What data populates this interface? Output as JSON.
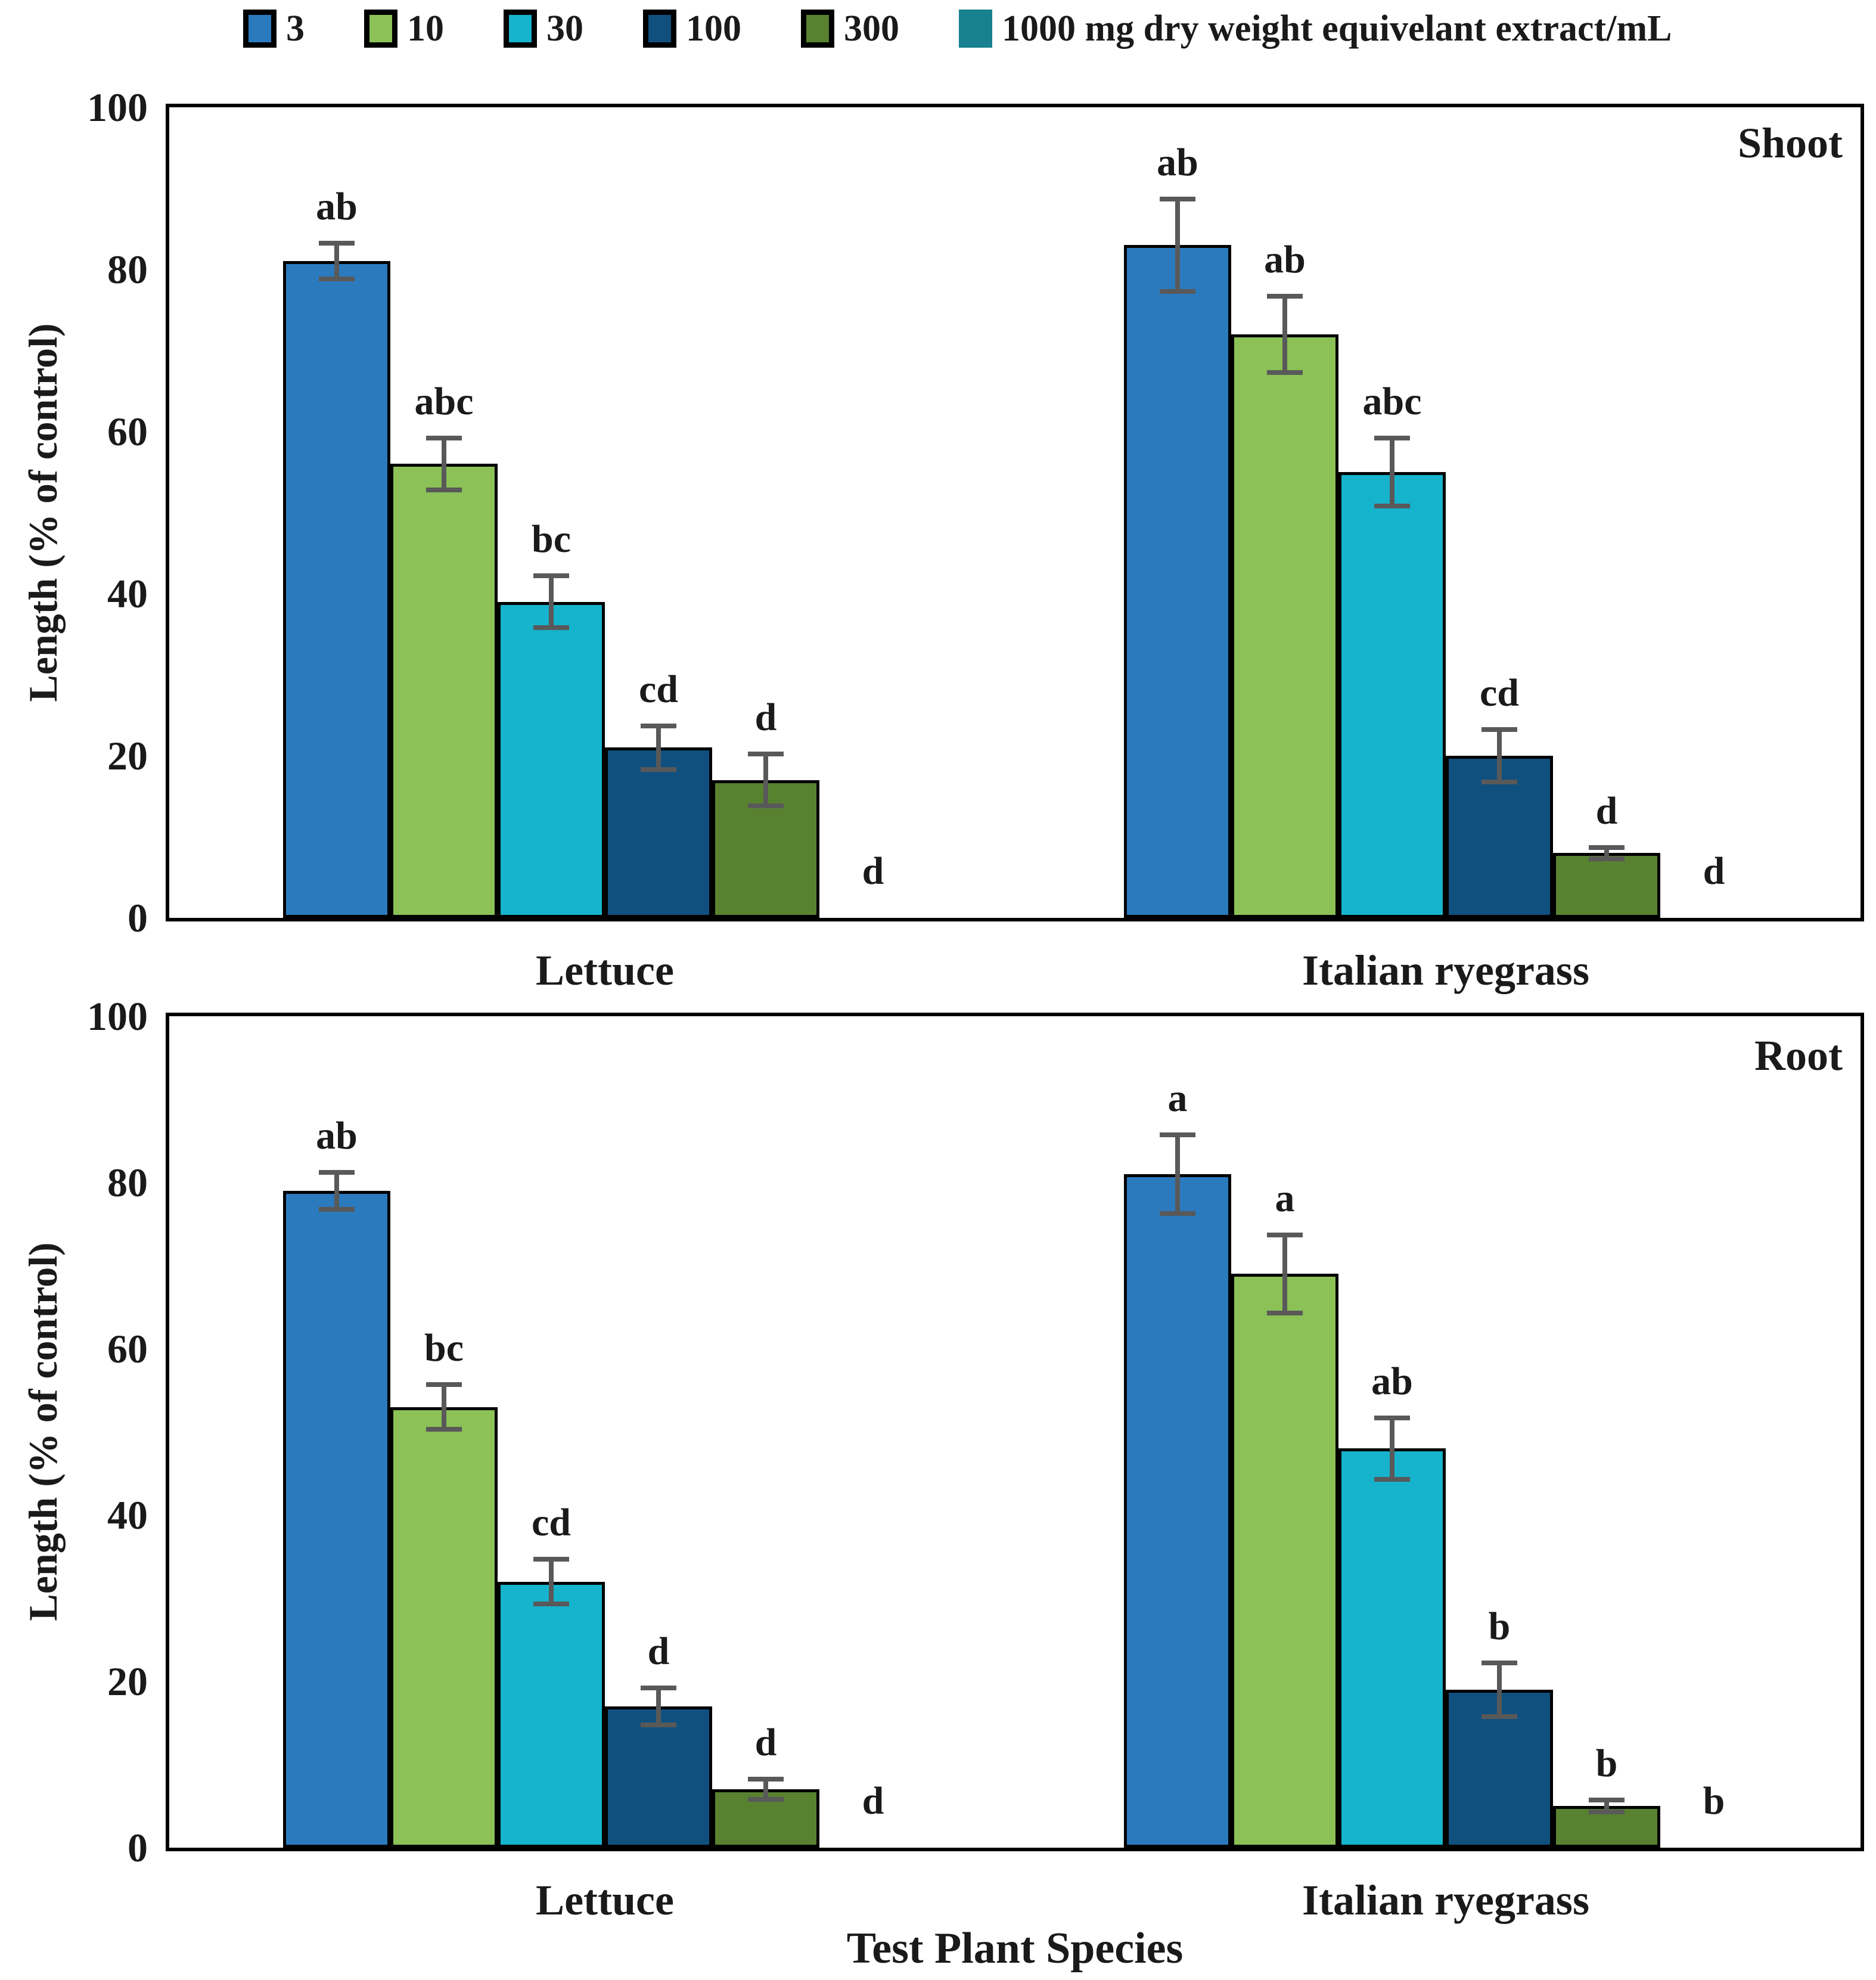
{
  "figure": {
    "x_axis_title": "Test Plant Species",
    "error_bar_color": "#595959",
    "bar_border_color": "#000000"
  },
  "legend": {
    "items": [
      {
        "label": "3",
        "color": "#2b7abe",
        "borderless": false
      },
      {
        "label": "10",
        "color": "#8bc156",
        "borderless": false
      },
      {
        "label": "30",
        "color": "#16b3cc",
        "borderless": false
      },
      {
        "label": "100",
        "color": "#10507f",
        "borderless": false
      },
      {
        "label": "300",
        "color": "#588230",
        "borderless": false
      },
      {
        "label": "1000 mg dry weight equivelant extract/mL",
        "color": "#18808e",
        "borderless": true
      }
    ]
  },
  "chart_data": [
    {
      "type": "bar",
      "panel": "Shoot",
      "ylabel": "Length (% of control)",
      "xlabel": "",
      "ylim": [
        0,
        100
      ],
      "yticks": [
        100,
        80,
        60,
        40,
        20,
        0
      ],
      "grid": false,
      "legend_position": "top",
      "categories": [
        "Lettuce",
        "Italian ryegrass"
      ],
      "doses_mg_dry_weight_equivalent_extract_per_mL": [
        "3",
        "10",
        "30",
        "100",
        "300",
        "1000"
      ],
      "series": [
        {
          "category": "Lettuce",
          "bars": [
            {
              "dose": "3",
              "value": 81,
              "error": 2.5,
              "letter": "ab"
            },
            {
              "dose": "10",
              "value": 56,
              "error": 3.5,
              "letter": "abc"
            },
            {
              "dose": "30",
              "value": 39,
              "error": 3.5,
              "letter": "bc"
            },
            {
              "dose": "100",
              "value": 21,
              "error": 3,
              "letter": "cd"
            },
            {
              "dose": "300",
              "value": 17,
              "error": 3.5,
              "letter": "d"
            },
            {
              "dose": "1000",
              "value": 0,
              "error": 0,
              "letter": "d"
            }
          ]
        },
        {
          "category": "Italian ryegrass",
          "bars": [
            {
              "dose": "3",
              "value": 83,
              "error": 6,
              "letter": "ab"
            },
            {
              "dose": "10",
              "value": 72,
              "error": 5,
              "letter": "ab"
            },
            {
              "dose": "30",
              "value": 55,
              "error": 4.5,
              "letter": "abc"
            },
            {
              "dose": "100",
              "value": 20,
              "error": 3.5,
              "letter": "cd"
            },
            {
              "dose": "300",
              "value": 8,
              "error": 1,
              "letter": "d"
            },
            {
              "dose": "1000",
              "value": 0,
              "error": 0,
              "letter": "d"
            }
          ]
        }
      ]
    },
    {
      "type": "bar",
      "panel": "Root",
      "ylabel": "Length (% of control)",
      "xlabel": "Test Plant Species",
      "ylim": [
        0,
        100
      ],
      "yticks": [
        100,
        80,
        60,
        40,
        20,
        0
      ],
      "grid": false,
      "legend_position": "top",
      "categories": [
        "Lettuce",
        "Italian ryegrass"
      ],
      "doses_mg_dry_weight_equivalent_extract_per_mL": [
        "3",
        "10",
        "30",
        "100",
        "300",
        "1000"
      ],
      "series": [
        {
          "category": "Lettuce",
          "bars": [
            {
              "dose": "3",
              "value": 79,
              "error": 2.5,
              "letter": "ab"
            },
            {
              "dose": "10",
              "value": 53,
              "error": 3,
              "letter": "bc"
            },
            {
              "dose": "30",
              "value": 32,
              "error": 3,
              "letter": "cd"
            },
            {
              "dose": "100",
              "value": 17,
              "error": 2.5,
              "letter": "d"
            },
            {
              "dose": "300",
              "value": 7,
              "error": 1.5,
              "letter": "d"
            },
            {
              "dose": "1000",
              "value": 0,
              "error": 0,
              "letter": "d"
            }
          ]
        },
        {
          "category": "Italian ryegrass",
          "bars": [
            {
              "dose": "3",
              "value": 81,
              "error": 5,
              "letter": "a"
            },
            {
              "dose": "10",
              "value": 69,
              "error": 5,
              "letter": "a"
            },
            {
              "dose": "30",
              "value": 48,
              "error": 4,
              "letter": "ab"
            },
            {
              "dose": "100",
              "value": 19,
              "error": 3.5,
              "letter": "b"
            },
            {
              "dose": "300",
              "value": 5,
              "error": 1,
              "letter": "b"
            },
            {
              "dose": "1000",
              "value": 0,
              "error": 0,
              "letter": "b"
            }
          ]
        }
      ]
    }
  ]
}
